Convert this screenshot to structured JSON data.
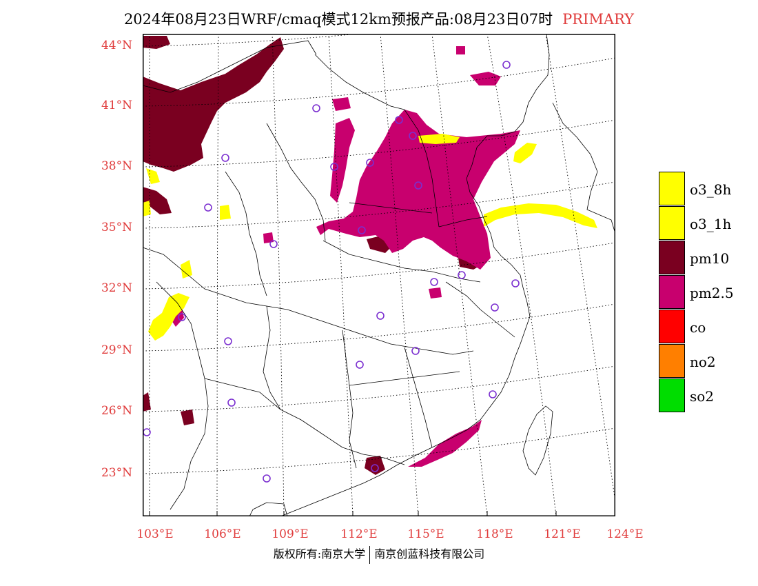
{
  "title": {
    "main": "2024年08月23日WRF/cmaq模式12km预报产品:08月23日07时",
    "tag": "PRIMARY"
  },
  "axes": {
    "lat_labels": [
      "44°N",
      "41°N",
      "38°N",
      "35°N",
      "32°N",
      "29°N",
      "26°N",
      "23°N"
    ],
    "lon_labels": [
      "103°E",
      "106°E",
      "109°E",
      "112°E",
      "115°E",
      "118°E",
      "121°E",
      "124°E"
    ]
  },
  "legend": [
    {
      "label": "o3_8h",
      "color": "#ffff00"
    },
    {
      "label": "o3_1h",
      "color": "#ffff00"
    },
    {
      "label": "pm10",
      "color": "#7a0020"
    },
    {
      "label": "pm2.5",
      "color": "#c8006e"
    },
    {
      "label": "co",
      "color": "#ff0000"
    },
    {
      "label": "no2",
      "color": "#ff7f00"
    },
    {
      "label": "so2",
      "color": "#00dd00"
    }
  ],
  "copyright": {
    "left": "版权所有:南京大学",
    "right": "南京创蓝科技有限公司"
  },
  "colors": {
    "pm10": "#7a0020",
    "pm25": "#c8006e",
    "o3": "#ffff00",
    "station": "#7b2fd0",
    "label": "#e03c3c"
  }
}
